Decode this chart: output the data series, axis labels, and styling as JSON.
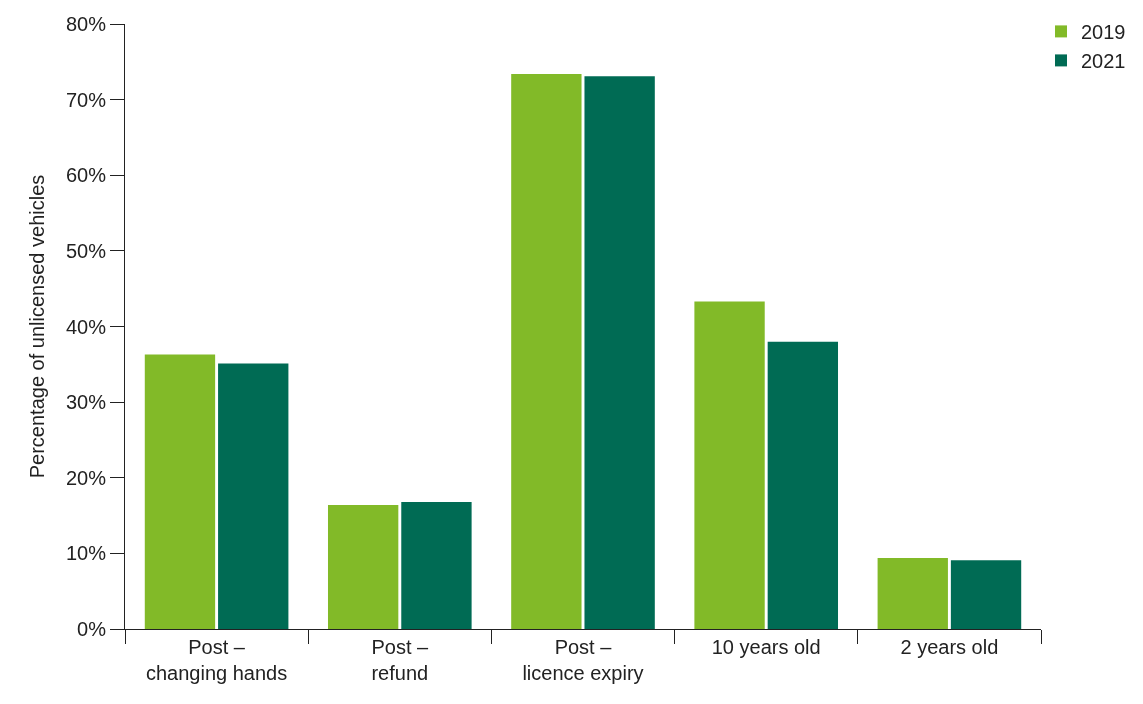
{
  "chart_data": {
    "type": "bar",
    "ylabel": "Percentage of unlicensed vehicles",
    "categories": [
      "Post –\nchanging hands",
      "Post –\nrefund",
      "Post –\nlicence expiry",
      "10 years old",
      "2 years old"
    ],
    "series": [
      {
        "name": "2019",
        "color": "#82ba28",
        "values": [
          36.3,
          16.4,
          73.4,
          43.3,
          9.4
        ]
      },
      {
        "name": "2021",
        "color": "#006b54",
        "values": [
          35.1,
          16.8,
          73.1,
          38.0,
          9.1
        ]
      }
    ],
    "ylim": [
      0,
      80
    ],
    "yticks": [
      {
        "value": 0,
        "label": "0%"
      },
      {
        "value": 10,
        "label": "10%"
      },
      {
        "value": 20,
        "label": "20%"
      },
      {
        "value": 30,
        "label": "30%"
      },
      {
        "value": 40,
        "label": "40%"
      },
      {
        "value": 50,
        "label": "50%"
      },
      {
        "value": 60,
        "label": "60%"
      },
      {
        "value": 70,
        "label": "70%"
      },
      {
        "value": 80,
        "label": "80%"
      }
    ],
    "legend": "top right"
  }
}
